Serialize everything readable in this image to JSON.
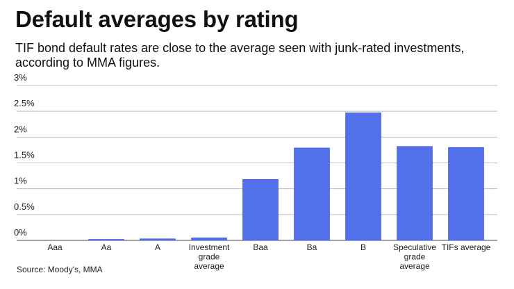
{
  "title": "Default averages by rating",
  "subtitle": "TIF bond default rates are close to the average seen with junk-rated investments, according to MMA figures.",
  "source": "Source: Moody's, MMA",
  "colors": {
    "bar": "#5170ea",
    "grid": "#bdbdbd"
  },
  "chart_data": {
    "type": "bar",
    "title": "Default averages by rating",
    "xlabel": "",
    "ylabel": "",
    "ylim": [
      0,
      3
    ],
    "yticks": [
      "0%",
      "0.5%",
      "1%",
      "1.5%",
      "2%",
      "2.5%",
      "3%"
    ],
    "categories": [
      [
        "Aaa"
      ],
      [
        "Aa"
      ],
      [
        "A"
      ],
      [
        "Investment",
        "grade",
        "average"
      ],
      [
        "Baa"
      ],
      [
        "Ba"
      ],
      [
        "B"
      ],
      [
        "Speculative",
        "grade",
        "average"
      ],
      [
        "TIFs average"
      ]
    ],
    "values": [
      0,
      0.02,
      0.03,
      0.05,
      1.18,
      1.79,
      2.47,
      1.82,
      1.8
    ],
    "grid": true,
    "legend": "none"
  }
}
